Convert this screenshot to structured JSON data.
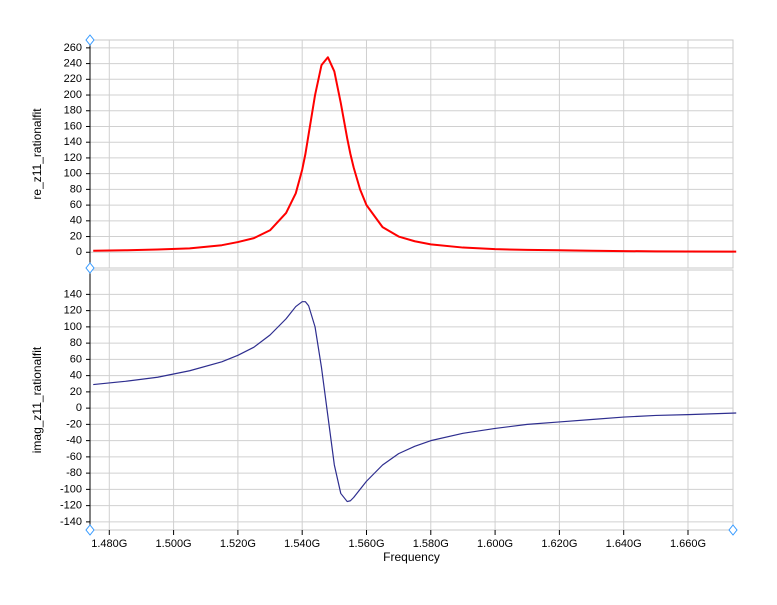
{
  "chart_data": [
    {
      "type": "line",
      "ylabel": "re_z11_rationalfit",
      "x": [
        1.475,
        1.485,
        1.495,
        1.505,
        1.515,
        1.52,
        1.525,
        1.53,
        1.535,
        1.538,
        1.54,
        1.541,
        1.542,
        1.544,
        1.546,
        1.548,
        1.55,
        1.552,
        1.554,
        1.555,
        1.556,
        1.558,
        1.56,
        1.565,
        1.57,
        1.575,
        1.58,
        1.59,
        1.6,
        1.61,
        1.62,
        1.63,
        1.64,
        1.65,
        1.66,
        1.675
      ],
      "series": [
        {
          "name": "re_z11_rationalfit",
          "color": "#ff0000",
          "values": [
            2,
            2.5,
            3.5,
            5,
            9,
            13,
            18,
            28,
            50,
            75,
            105,
            125,
            150,
            200,
            238,
            248,
            230,
            190,
            145,
            125,
            108,
            80,
            60,
            32,
            20,
            14,
            10,
            6,
            4,
            3,
            2.5,
            2,
            1.5,
            1.2,
            1,
            0.8
          ]
        }
      ],
      "xlim": [
        1.474,
        1.674
      ],
      "xticks": [
        1.48,
        1.5,
        1.52,
        1.54,
        1.56,
        1.58,
        1.6,
        1.62,
        1.64,
        1.66
      ],
      "ylim": [
        -20,
        270
      ],
      "yticks": [
        0,
        20,
        40,
        60,
        80,
        100,
        120,
        140,
        160,
        180,
        200,
        220,
        240,
        260
      ],
      "grid": true
    },
    {
      "type": "line",
      "ylabel": "imag_z11_rationalfit",
      "xlabel": "Frequency",
      "x": [
        1.475,
        1.485,
        1.495,
        1.505,
        1.515,
        1.52,
        1.525,
        1.53,
        1.535,
        1.538,
        1.54,
        1.541,
        1.542,
        1.544,
        1.546,
        1.548,
        1.55,
        1.552,
        1.554,
        1.555,
        1.556,
        1.558,
        1.56,
        1.565,
        1.57,
        1.575,
        1.58,
        1.59,
        1.6,
        1.61,
        1.62,
        1.63,
        1.64,
        1.65,
        1.66,
        1.675
      ],
      "series": [
        {
          "name": "imag_z11_rationalfit",
          "color": "#2e2e8f",
          "values": [
            29,
            33,
            38,
            46,
            57,
            65,
            75,
            90,
            110,
            125,
            131,
            131,
            126,
            100,
            50,
            -10,
            -70,
            -105,
            -115,
            -114,
            -110,
            -100,
            -90,
            -70,
            -56,
            -47,
            -40,
            -31,
            -25,
            -20,
            -17,
            -14,
            -11,
            -9,
            -8,
            -6
          ]
        }
      ],
      "xlim": [
        1.474,
        1.674
      ],
      "xticks": [
        {
          "value": 1.48,
          "label": "1.480G"
        },
        {
          "value": 1.5,
          "label": "1.500G"
        },
        {
          "value": 1.52,
          "label": "1.520G"
        },
        {
          "value": 1.54,
          "label": "1.540G"
        },
        {
          "value": 1.56,
          "label": "1.560G"
        },
        {
          "value": 1.58,
          "label": "1.580G"
        },
        {
          "value": 1.6,
          "label": "1.600G"
        },
        {
          "value": 1.62,
          "label": "1.620G"
        },
        {
          "value": 1.64,
          "label": "1.640G"
        },
        {
          "value": 1.66,
          "label": "1.660G"
        }
      ],
      "ylim": [
        -150,
        170
      ],
      "yticks": [
        -140,
        -120,
        -100,
        -80,
        -60,
        -40,
        -20,
        0,
        20,
        40,
        60,
        80,
        100,
        120,
        140
      ],
      "grid": true
    }
  ]
}
